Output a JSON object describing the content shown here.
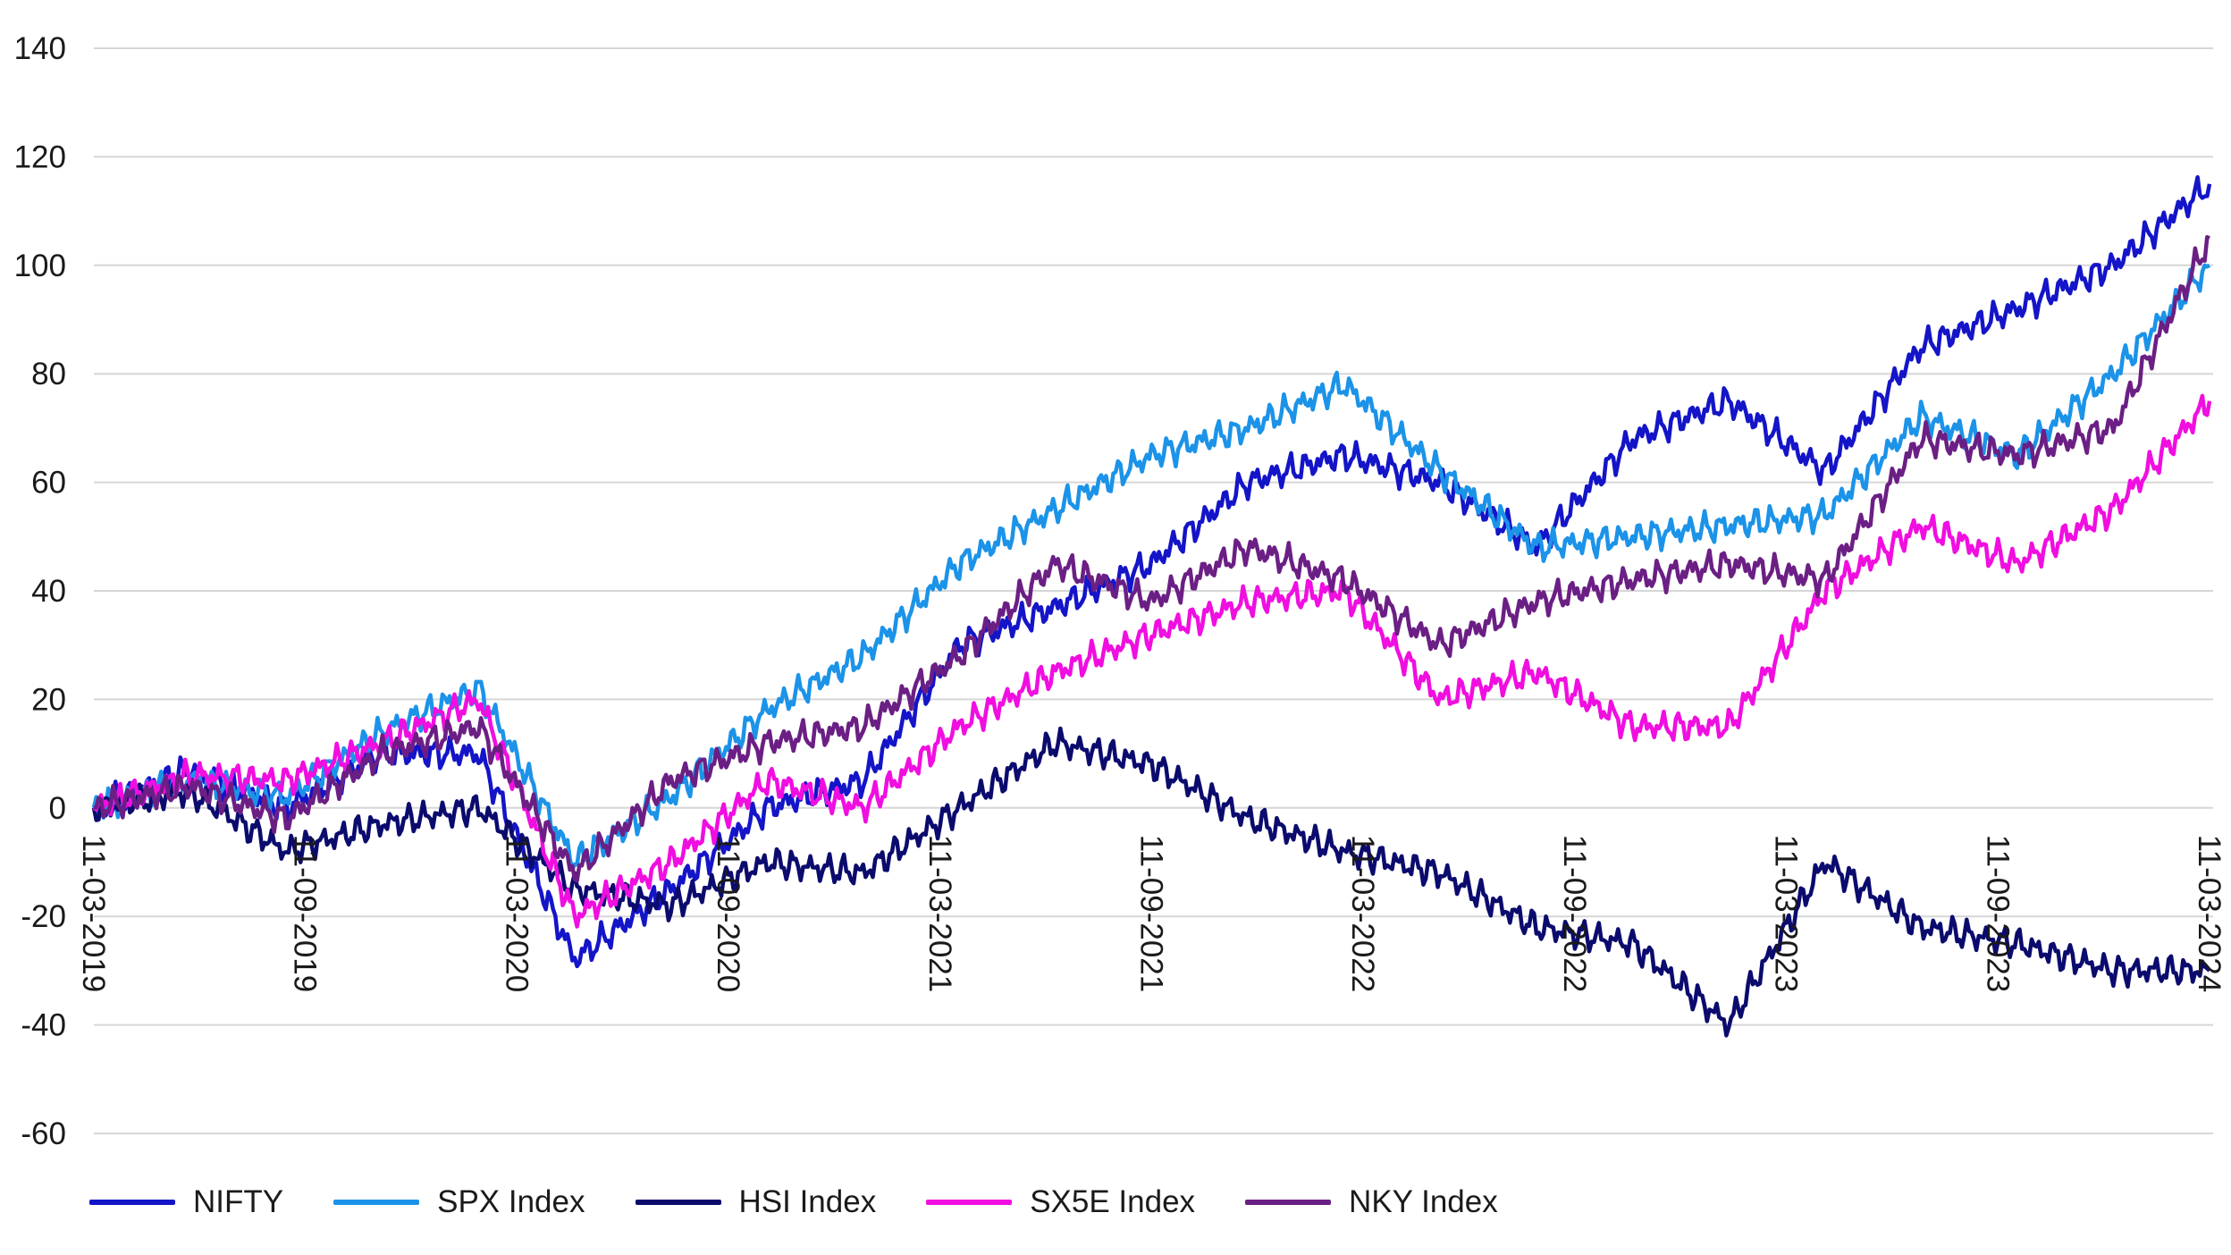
{
  "chart_data": {
    "type": "line",
    "title": "",
    "xlabel": "",
    "ylabel": "",
    "ylim": [
      -60,
      140
    ],
    "yticks": [
      "140",
      "120",
      "100",
      "80",
      "60",
      "40",
      "20",
      "0",
      "-20",
      "-40",
      "-60"
    ],
    "x_ticks": [
      "11-03-2019",
      "11-09-2019",
      "11-03-2020",
      "11-09-2020",
      "11-03-2021",
      "11-09-2021",
      "11-03-2022",
      "11-09-2022",
      "11-03-2023",
      "11-09-2023",
      "11-03-2024"
    ],
    "grid": "horizontal",
    "legend_position": "bottom-left",
    "x": [
      "11-03-2019",
      "11-06-2019",
      "11-09-2019",
      "11-12-2019",
      "11-02-2020",
      "11-03-2020",
      "11-04-2020",
      "11-06-2020",
      "11-09-2020",
      "11-12-2020",
      "11-03-2021",
      "11-06-2021",
      "11-09-2021",
      "11-12-2021",
      "11-03-2022",
      "11-06-2022",
      "11-09-2022",
      "11-12-2022",
      "11-03-2023",
      "11-06-2023",
      "11-09-2023",
      "11-12-2023",
      "11-03-2024"
    ],
    "series": [
      {
        "name": "NIFTY",
        "color": "#1414c8",
        "values": [
          0,
          7,
          0,
          10,
          10,
          -28,
          -15,
          0,
          5,
          30,
          37,
          45,
          60,
          65,
          60,
          48,
          68,
          75,
          62,
          85,
          92,
          100,
          115
        ]
      },
      {
        "name": "SPX Index",
        "color": "#1b93e8",
        "values": [
          0,
          5,
          2,
          14,
          22,
          -10,
          2,
          18,
          28,
          45,
          55,
          65,
          70,
          78,
          62,
          48,
          50,
          52,
          54,
          72,
          65,
          80,
          100
        ]
      },
      {
        "name": "HSI Index",
        "color": "#0b0b6e",
        "values": [
          0,
          3,
          -8,
          -3,
          0,
          -15,
          -18,
          -10,
          -12,
          0,
          12,
          8,
          -2,
          -8,
          -12,
          -22,
          -25,
          -40,
          -10,
          -22,
          -25,
          -30,
          -30
        ]
      },
      {
        "name": "SX5E Index",
        "color": "#f00ee0",
        "values": [
          0,
          6,
          5,
          12,
          20,
          -20,
          -10,
          5,
          0,
          15,
          25,
          32,
          38,
          40,
          20,
          25,
          15,
          15,
          40,
          52,
          45,
          55,
          75
        ]
      },
      {
        "name": "NKY Index",
        "color": "#6b1f84",
        "values": [
          0,
          4,
          -2,
          10,
          15,
          -12,
          5,
          12,
          15,
          28,
          45,
          38,
          48,
          42,
          30,
          38,
          42,
          45,
          42,
          68,
          65,
          70,
          105
        ]
      }
    ]
  }
}
